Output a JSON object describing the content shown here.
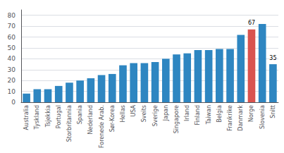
{
  "chart_data": {
    "type": "bar",
    "categories": [
      "Australia",
      "Tyskland",
      "Tsjekkia",
      "Portugal",
      "Storbritannia",
      "Spania",
      "Nederland",
      "Forenede Arab.",
      "Sør-Korea",
      "Hellas",
      "USA",
      "Sveits",
      "Sverige",
      "Japan",
      "Singapore",
      "Irland",
      "Finland",
      "Taiwan",
      "Belgia",
      "Frankrike",
      "Danmark",
      "Norge",
      "Slovenia",
      "Snitt"
    ],
    "values": [
      8,
      12,
      12,
      15,
      18,
      20,
      22,
      25,
      26,
      34,
      36,
      36,
      37,
      40,
      44,
      45,
      48,
      48,
      49,
      49,
      62,
      67,
      72,
      35
    ],
    "colors": [
      "#2E86C1",
      "#2E86C1",
      "#2E86C1",
      "#2E86C1",
      "#2E86C1",
      "#2E86C1",
      "#2E86C1",
      "#2E86C1",
      "#2E86C1",
      "#2E86C1",
      "#2E86C1",
      "#2E86C1",
      "#2E86C1",
      "#2E86C1",
      "#2E86C1",
      "#2E86C1",
      "#2E86C1",
      "#2E86C1",
      "#2E86C1",
      "#2E86C1",
      "#2E86C1",
      "#D9534F",
      "#2E86C1",
      "#2E86C1"
    ],
    "annotations": [
      {
        "category": "Norge",
        "text": "67"
      },
      {
        "category": "Snitt",
        "text": "35"
      }
    ],
    "ylim": [
      0,
      85
    ],
    "yticks": [
      0,
      10,
      20,
      30,
      40,
      50,
      60,
      70,
      80
    ],
    "grid": true
  }
}
